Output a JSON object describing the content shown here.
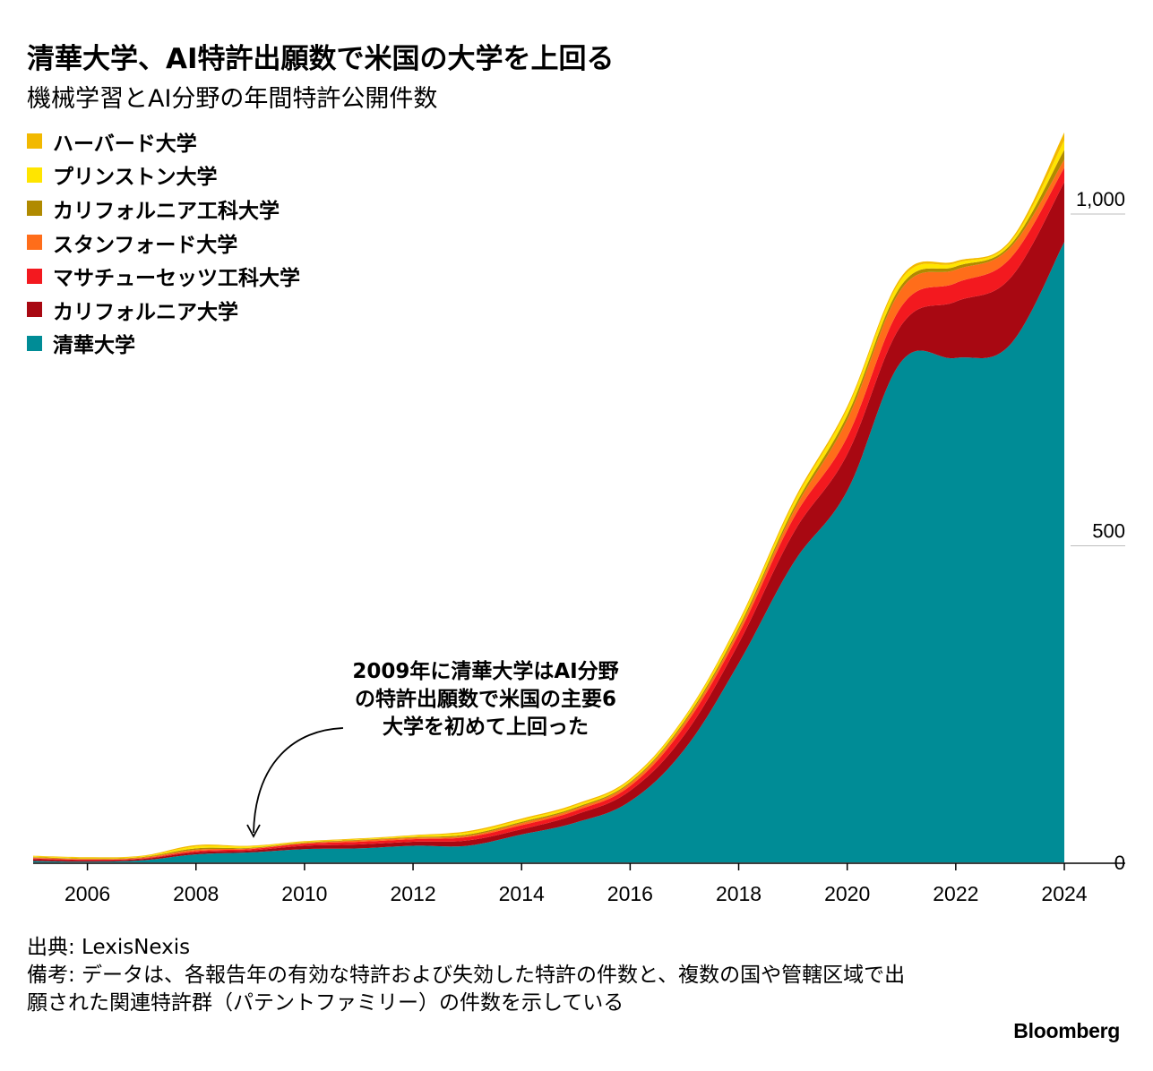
{
  "title": "清華大学、AI特許出願数で米国の大学を上回る",
  "subtitle": "機械学習とAI分野の年間特許公開件数",
  "annotation": "2009年に清華大学はAI分野\nの特許出願数で米国の主要6\n大学を初めて上回った",
  "source": "出典: LexisNexis",
  "note": "備考: データは、各報告年の有効な特許および失効した特許の件数と、複数の国や管轄区域で出願された関連特許群（パテントファミリー）の件数を示している",
  "brand": "Bloomberg",
  "legend": [
    {
      "label": "ハーバード大学",
      "color": "#f2b900"
    },
    {
      "label": "プリンストン大学",
      "color": "#ffe500"
    },
    {
      "label": "カリフォルニア工科大学",
      "color": "#b08a00"
    },
    {
      "label": "スタンフォード大学",
      "color": "#ff6d1a"
    },
    {
      "label": "マサチューセッツ工科大学",
      "color": "#f3191f"
    },
    {
      "label": "カリフォルニア大学",
      "color": "#a80812"
    },
    {
      "label": "清華大学",
      "color": "#008c96"
    }
  ],
  "chart_data": {
    "type": "area",
    "stacked": true,
    "x": [
      2005,
      2006,
      2007,
      2008,
      2009,
      2010,
      2011,
      2012,
      2013,
      2014,
      2015,
      2016,
      2017,
      2018,
      2019,
      2020,
      2021,
      2022,
      2023,
      2024
    ],
    "series": [
      {
        "name": "清華大学",
        "color": "#008c96",
        "values": [
          2,
          1,
          3,
          12,
          15,
          20,
          21,
          25,
          25,
          42,
          60,
          92,
          170,
          300,
          450,
          560,
          755,
          760,
          780,
          935
        ]
      },
      {
        "name": "カリフォルニア大学",
        "color": "#a80812",
        "values": [
          3,
          2,
          2,
          3,
          3,
          5,
          6,
          6,
          8,
          8,
          12,
          16,
          22,
          30,
          45,
          55,
          55,
          85,
          100,
          90
        ]
      },
      {
        "name": "マサチューセッツ工科大学",
        "color": "#f3191f",
        "values": [
          1,
          1,
          1,
          2,
          2,
          3,
          4,
          4,
          5,
          6,
          6,
          7,
          13,
          14,
          22,
          26,
          28,
          28,
          30,
          22
        ]
      },
      {
        "name": "スタンフォード大学",
        "color": "#ff6d1a",
        "values": [
          1,
          1,
          1,
          2,
          1,
          1,
          2,
          2,
          2,
          3,
          3,
          4,
          5,
          6,
          10,
          26,
          26,
          20,
          16,
          12
        ]
      },
      {
        "name": "カリフォルニア工科大学",
        "color": "#b08a00",
        "values": [
          1,
          1,
          1,
          2,
          1,
          1,
          1,
          1,
          2,
          2,
          2,
          2,
          3,
          4,
          5,
          7,
          6,
          5,
          4,
          15
        ]
      },
      {
        "name": "プリンストン大学",
        "color": "#ffe500",
        "values": [
          1,
          1,
          1,
          3,
          2,
          1,
          1,
          2,
          3,
          3,
          3,
          3,
          4,
          6,
          7,
          9,
          9,
          5,
          4,
          14
        ]
      },
      {
        "name": "ハーバード大学",
        "color": "#f2b900",
        "values": [
          1,
          1,
          1,
          2,
          1,
          1,
          1,
          1,
          2,
          2,
          2,
          2,
          2,
          3,
          4,
          4,
          4,
          3,
          3,
          12
        ]
      }
    ],
    "xticks": [
      "2006",
      "2008",
      "2010",
      "2012",
      "2014",
      "2016",
      "2018",
      "2020",
      "2022",
      "2024"
    ],
    "yticks": [
      "0",
      "500",
      "1,000"
    ],
    "ylim": [
      0,
      1000
    ],
    "xlim": [
      2005,
      2024
    ]
  }
}
